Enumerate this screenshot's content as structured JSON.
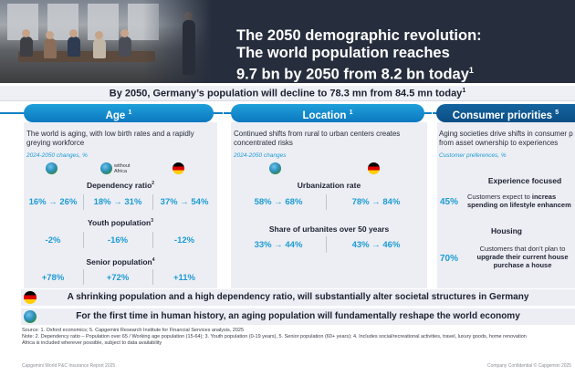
{
  "hero": {
    "line1": "The 2050 demographic revolution:",
    "line2": "The world population reaches",
    "line3": "9.7 bn by 2050 from 8.2 bn today",
    "line3_sup": "1"
  },
  "subtitle": {
    "text": "By 2050, Germany’s population will decline to 78.3 mn from 84.5 mn today",
    "sup": "1"
  },
  "age": {
    "title": "Age",
    "title_sup": "1",
    "lead": "The world is aging, with low birth rates and a rapidly greying workforce",
    "tag": "2024-2050 changes, %",
    "without_africa": "without Africa",
    "dependency": {
      "title": "Dependency ratio",
      "sup": "2",
      "values": [
        "16% → 26%",
        "18% → 31%",
        "37% → 54%"
      ]
    },
    "youth": {
      "title": "Youth population",
      "sup": "3",
      "values": [
        "-2%",
        "-16%",
        "-12%"
      ]
    },
    "senior": {
      "title": "Senior population",
      "sup": "4",
      "values": [
        "+78%",
        "+72%",
        "+11%"
      ]
    }
  },
  "location": {
    "title": "Location",
    "title_sup": "1",
    "lead": "Continued shifts from rural to urban centers creates concentrated risks",
    "tag": "2024-2050 changes",
    "urbanization": {
      "title": "Urbanization rate",
      "values": [
        "58% → 68%",
        "78% → 84%"
      ]
    },
    "urbanites": {
      "title": "Share of urbanites over 50 years",
      "values": [
        "33% → 44%",
        "43% → 46%"
      ]
    }
  },
  "consumer": {
    "title": "Consumer priorities",
    "title_sup": "5",
    "lead": "Aging societies drive shifts in consumer p from asset ownership to experiences",
    "tag": "Customer preferences, %",
    "experience": {
      "title": "Experience focused",
      "pct": "45%",
      "body_normal": "Customers expect to ",
      "body_bold1": "increas",
      "body_bold2": "spending on lifestyle enhancem"
    },
    "housing": {
      "title": "Housing",
      "pct": "70%",
      "line1": "Customers that don’t plan to",
      "line2": "upgrade their current house",
      "line3": "purchase a house"
    }
  },
  "takeaways": [
    "A shrinking population and a high dependency ratio, will substantially alter societal structures in Germany",
    "For the first time in human history, an aging population will fundamentally reshape the world economy"
  ],
  "notes": {
    "source": "Source: 1. Oxford economics; 5. Capgemini Research Institute for Financial Services analysis, 2025",
    "note1": "Note: 2. Dependency ratio – Population over 65 / Working age population (15-64); 3. Youth population  (0-19 years), 5. Senior population (60+ years); 4. Includes social/recreational activities, travel, luxury goods, home renovation",
    "note2": "Africa is included wherever possible, subject to data availability"
  },
  "footer": {
    "left": "Capgemini World P&C Insurance Report 2025",
    "right": "Company Confidential © Capgemini 2025"
  },
  "colors": {
    "accent": "#1e9bd4",
    "navy": "#262d3c",
    "card": "#eceef4"
  },
  "icons": [
    "globe-icon",
    "globe-without-africa-icon",
    "germany-flag-icon"
  ]
}
